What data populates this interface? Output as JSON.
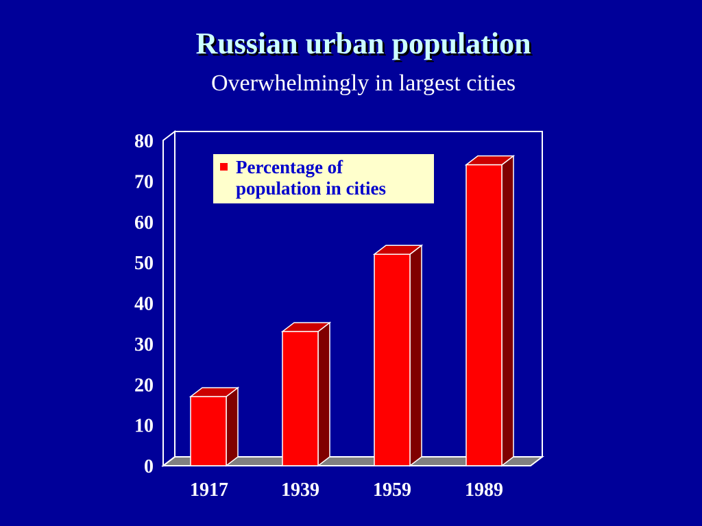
{
  "slide": {
    "title": "Russian urban population",
    "subtitle": "Overwhelmingly in largest cities"
  },
  "chart_data": {
    "type": "bar",
    "categories": [
      "1917",
      "1939",
      "1959",
      "1989"
    ],
    "series": [
      {
        "name": "Percentage of population in cities",
        "values": [
          17,
          33,
          52,
          74
        ]
      }
    ],
    "legend": {
      "line1": "Percentage of",
      "line2": "population in cities",
      "placement": "top-left inside"
    },
    "yticks": [
      "0",
      "10",
      "20",
      "30",
      "40",
      "50",
      "60",
      "70",
      "80"
    ],
    "ylim": [
      0,
      80
    ],
    "grid": false,
    "colors": {
      "bar_front": "#ff0000",
      "bar_side": "#800000",
      "bar_top": "#cc0000",
      "floor": "#808080",
      "background": "#000099",
      "legend_bg": "#ffffcc"
    }
  }
}
